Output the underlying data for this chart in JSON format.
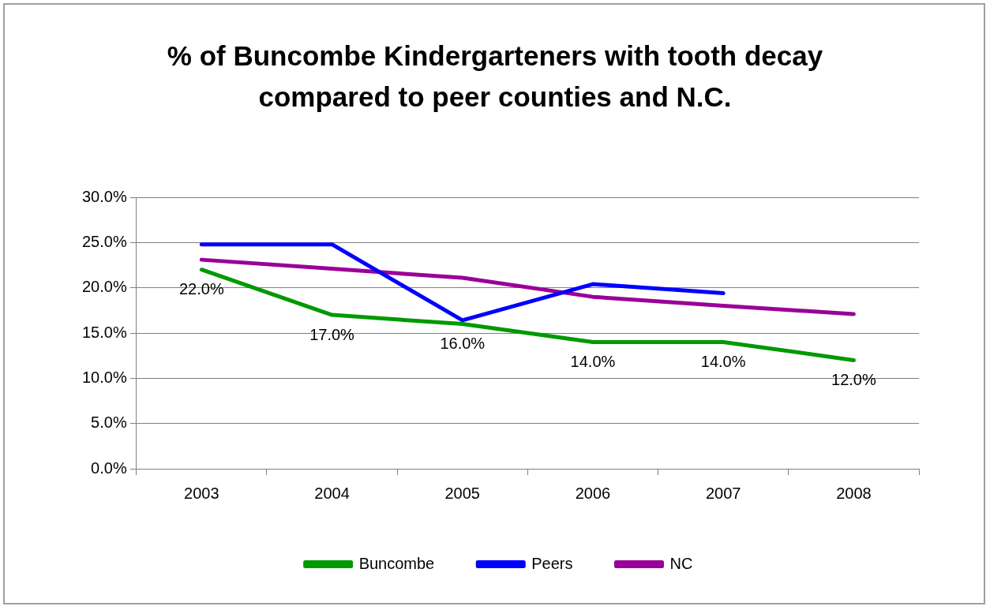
{
  "chart_data": {
    "type": "line",
    "title": "% of Buncombe Kindergarteners with tooth decay compared to peer counties and N.C.",
    "categories": [
      "2003",
      "2004",
      "2005",
      "2006",
      "2007",
      "2008"
    ],
    "series": [
      {
        "name": "Buncombe",
        "color": "#009900",
        "values": [
          22,
          17,
          16,
          14,
          14,
          12
        ],
        "value_labels": [
          "22.0%",
          "17.0%",
          "16.0%",
          "14.0%",
          "14.0%",
          "12.0%"
        ]
      },
      {
        "name": "Peers",
        "color": "#0000ff",
        "values": [
          24.8,
          24.8,
          16.4,
          20.4,
          19.4,
          null
        ]
      },
      {
        "name": "NC",
        "color": "#990099",
        "values": [
          23.1,
          22.1,
          21.1,
          19,
          18,
          17.1
        ]
      }
    ],
    "ylim": [
      0,
      30
    ],
    "yticks": [
      {
        "value": 0,
        "label": "0.0%"
      },
      {
        "value": 5,
        "label": "5.0%"
      },
      {
        "value": 10,
        "label": "10.0%"
      },
      {
        "value": 15,
        "label": "15.0%"
      },
      {
        "value": 20,
        "label": "20.0%"
      },
      {
        "value": 25,
        "label": "25.0%"
      },
      {
        "value": 30,
        "label": "30.0%"
      }
    ],
    "grid": "y",
    "legend": "bottom",
    "marker": "none",
    "line_style": "solid"
  }
}
